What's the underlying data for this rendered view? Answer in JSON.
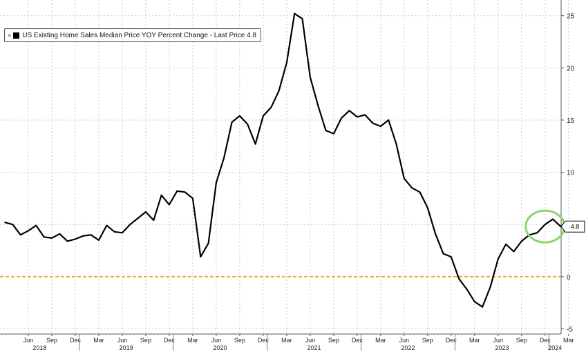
{
  "chart_data": {
    "type": "line",
    "title": "",
    "xlabel": "",
    "ylabel": "",
    "ylim": [
      -5.5,
      26.5
    ],
    "y_ticks": [
      -5,
      0,
      5,
      10,
      15,
      20,
      25
    ],
    "grid": true,
    "legend_position": "top-left",
    "legend_text": "US Existing Home Sales Median Price YOY Percent Change - Last Price 4.8",
    "last_price_label": "4.8",
    "reference_line": {
      "y": 0,
      "color": "#e0b030"
    },
    "series_color": "#000000",
    "highlight_color": "#8fd36a",
    "month_ticks": [
      "Jun",
      "Sep",
      "Dec",
      "Mar",
      "Jun",
      "Sep",
      "Dec",
      "Mar",
      "Jun",
      "Sep",
      "Dec",
      "Mar",
      "Jun",
      "Sep",
      "Dec",
      "Mar",
      "Jun",
      "Sep",
      "Dec",
      "Mar",
      "Jun",
      "Sep",
      "Dec",
      "Mar"
    ],
    "years": [
      "2018",
      "2019",
      "2020",
      "2021",
      "2022",
      "2023",
      "2024"
    ],
    "series": [
      {
        "name": "US Existing Home Sales Median Price YOY Percent Change",
        "x_start": "2018-03",
        "values": [
          5.2,
          5.0,
          4.0,
          4.4,
          4.9,
          3.8,
          3.7,
          4.1,
          3.4,
          3.6,
          3.9,
          4.0,
          3.5,
          4.9,
          4.3,
          4.2,
          5.0,
          5.6,
          6.2,
          5.4,
          7.8,
          6.9,
          8.2,
          8.1,
          7.5,
          1.9,
          3.2,
          9.0,
          11.4,
          14.8,
          15.4,
          14.6,
          12.7,
          15.4,
          16.2,
          17.8,
          20.5,
          25.2,
          24.7,
          19.1,
          16.4,
          14.0,
          13.7,
          15.2,
          15.9,
          15.3,
          15.5,
          14.7,
          14.4,
          15.0,
          12.7,
          9.4,
          8.5,
          8.1,
          6.6,
          4.1,
          2.2,
          1.9,
          -0.2,
          -1.2,
          -2.4,
          -2.9,
          -1.0,
          1.7,
          3.1,
          2.4,
          3.4,
          4.0,
          4.2,
          5.0,
          5.5,
          4.8
        ]
      }
    ]
  }
}
